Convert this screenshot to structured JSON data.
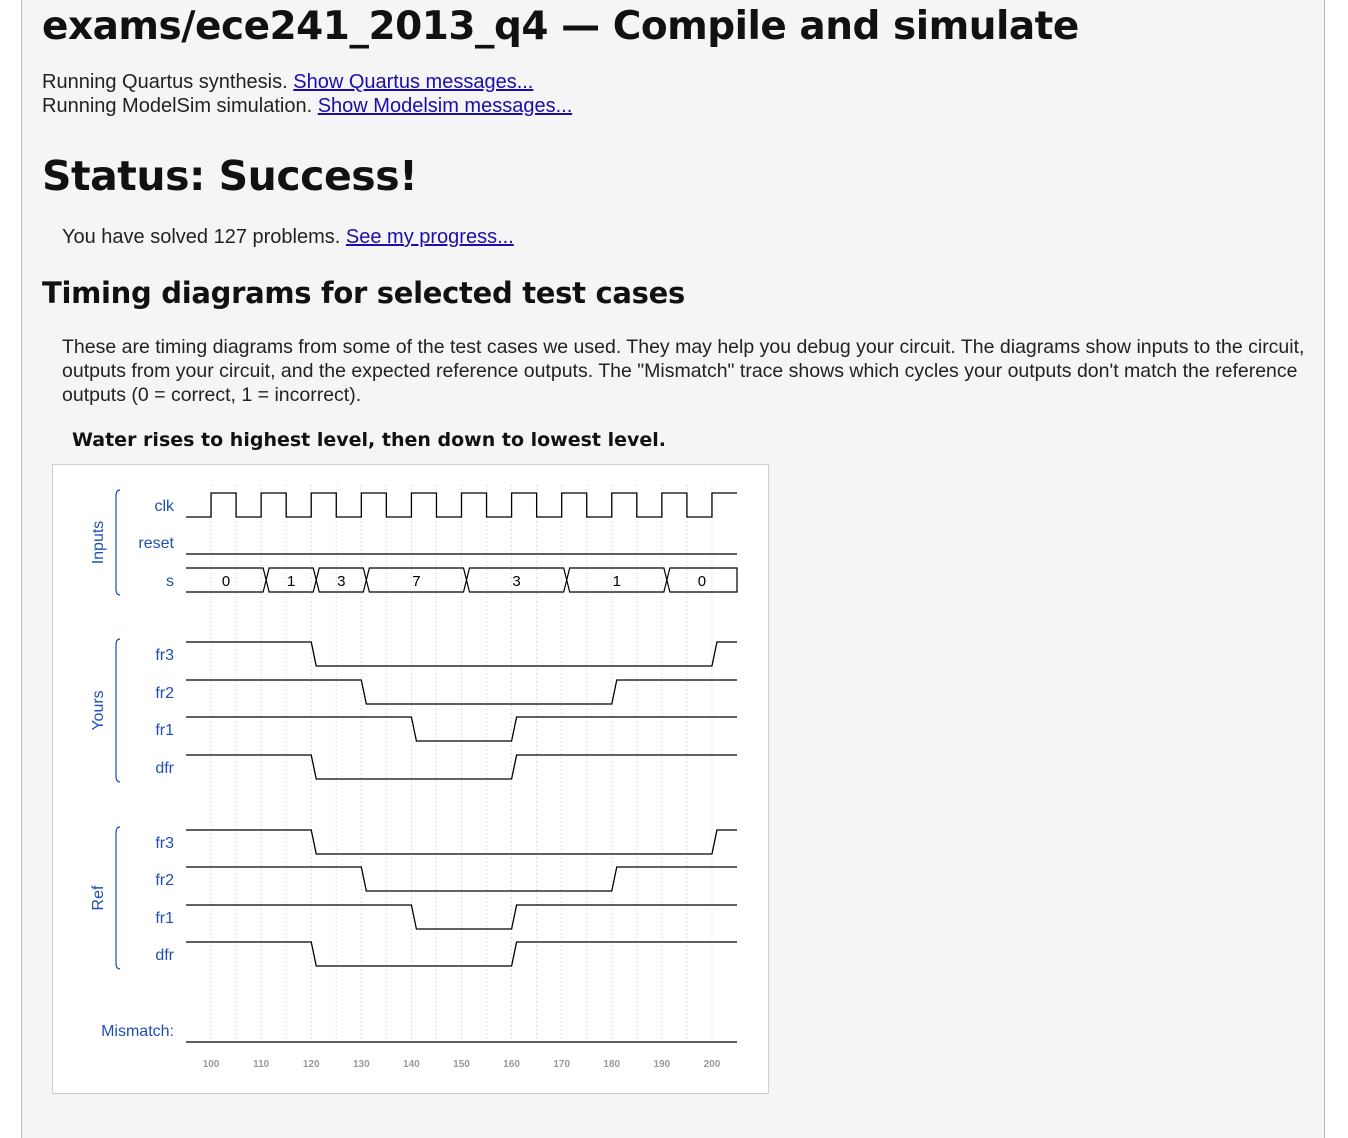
{
  "header": {
    "title": "exams/ece241_2013_q4 — Compile and simulate",
    "quartus_text": "Running Quartus synthesis.",
    "quartus_link": "Show Quartus messages...",
    "modelsim_text": "Running ModelSim simulation.",
    "modelsim_link": "Show Modelsim messages..."
  },
  "status": {
    "title": "Status: Success!",
    "progress_text": "You have solved 127 problems.",
    "progress_link": "See my progress..."
  },
  "timing": {
    "heading": "Timing diagrams for selected test cases",
    "description": "These are timing diagrams from some of the test cases we used. They may help you debug your circuit. The diagrams show inputs to the circuit, outputs from your circuit, and the expected reference outputs. The \"Mismatch\" trace shows which cycles your outputs don't match the reference outputs (0 = correct, 1 = incorrect).",
    "case_title": "Water rises to highest level, then down to lowest level."
  },
  "waveform": {
    "groups": [
      "Inputs",
      "Yours",
      "Ref"
    ],
    "time_range": [
      95,
      205
    ],
    "time_ticks": [
      "100",
      "110",
      "120",
      "130",
      "140",
      "150",
      "160",
      "170",
      "180",
      "190",
      "200"
    ],
    "clock_period": 10,
    "clock_first_rise": 100,
    "colors": {
      "label": "#1f4fb5",
      "trace": "#000000",
      "tick": "#999999",
      "grid": "#c8c8c8"
    },
    "signals": [
      {
        "label": "clk",
        "group": "Inputs",
        "type": "clock"
      },
      {
        "label": "reset",
        "group": "Inputs",
        "type": "bit",
        "init": 0,
        "changes": []
      },
      {
        "label": "s",
        "group": "Inputs",
        "type": "bus",
        "segments": [
          {
            "value": "0",
            "start": 95,
            "end": 111
          },
          {
            "value": "1",
            "start": 111,
            "end": 121
          },
          {
            "value": "3",
            "start": 121,
            "end": 131
          },
          {
            "value": "7",
            "start": 131,
            "end": 151
          },
          {
            "value": "3",
            "start": 151,
            "end": 171
          },
          {
            "value": "1",
            "start": 171,
            "end": 191
          },
          {
            "value": "0",
            "start": 191,
            "end": 205
          }
        ]
      },
      {
        "label": "fr3",
        "group": "Yours",
        "type": "bit",
        "init": 1,
        "changes": [
          [
            120,
            0
          ],
          [
            200,
            1
          ]
        ]
      },
      {
        "label": "fr2",
        "group": "Yours",
        "type": "bit",
        "init": 1,
        "changes": [
          [
            130,
            0
          ],
          [
            180,
            1
          ]
        ]
      },
      {
        "label": "fr1",
        "group": "Yours",
        "type": "bit",
        "init": 1,
        "changes": [
          [
            140,
            0
          ],
          [
            160,
            1
          ]
        ]
      },
      {
        "label": "dfr",
        "group": "Yours",
        "type": "bit",
        "init": 1,
        "changes": [
          [
            120,
            0
          ],
          [
            160,
            1
          ]
        ]
      },
      {
        "label": "fr3",
        "group": "Ref",
        "type": "bit",
        "init": 1,
        "changes": [
          [
            120,
            0
          ],
          [
            200,
            1
          ]
        ]
      },
      {
        "label": "fr2",
        "group": "Ref",
        "type": "bit",
        "init": 1,
        "changes": [
          [
            130,
            0
          ],
          [
            180,
            1
          ]
        ]
      },
      {
        "label": "fr1",
        "group": "Ref",
        "type": "bit",
        "init": 1,
        "changes": [
          [
            140,
            0
          ],
          [
            160,
            1
          ]
        ]
      },
      {
        "label": "dfr",
        "group": "Ref",
        "type": "bit",
        "init": 1,
        "changes": [
          [
            120,
            0
          ],
          [
            160,
            1
          ]
        ]
      },
      {
        "label": "Mismatch:",
        "group": "",
        "type": "bit",
        "init": 0,
        "changes": []
      }
    ]
  }
}
